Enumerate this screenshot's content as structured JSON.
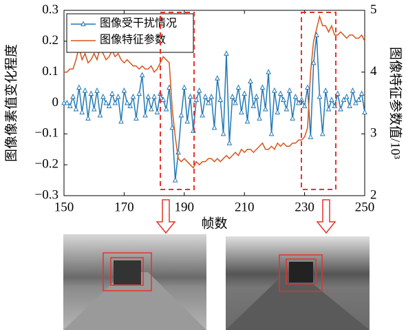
{
  "chart_data": {
    "type": "line",
    "x_label": "帧数",
    "y_label": "图像像素值变化程度",
    "y2_label": "图像特征参数值/10³",
    "x": [
      150,
      151,
      152,
      153,
      154,
      155,
      156,
      157,
      158,
      159,
      160,
      161,
      162,
      163,
      164,
      165,
      166,
      167,
      168,
      169,
      170,
      171,
      172,
      173,
      174,
      175,
      176,
      177,
      178,
      179,
      180,
      181,
      182,
      183,
      184,
      185,
      186,
      187,
      188,
      189,
      190,
      191,
      192,
      193,
      194,
      195,
      196,
      197,
      198,
      199,
      200,
      201,
      202,
      203,
      204,
      205,
      206,
      207,
      208,
      209,
      210,
      211,
      212,
      213,
      214,
      215,
      216,
      217,
      218,
      219,
      220,
      221,
      222,
      223,
      224,
      225,
      226,
      227,
      228,
      229,
      230,
      231,
      232,
      233,
      234,
      235,
      236,
      237,
      238,
      239,
      240,
      241,
      242,
      243,
      244,
      245,
      246,
      247,
      248,
      249,
      250
    ],
    "series": [
      {
        "name": "图像受干扰情况",
        "color": "#1f77b4",
        "axis": "y",
        "values": [
          0,
          0,
          -0.01,
          0.02,
          -0.02,
          0.05,
          -0.03,
          0.04,
          -0.05,
          0.03,
          -0.02,
          0.04,
          -0.04,
          0.02,
          0,
          -0.01,
          0.03,
          0,
          0.02,
          -0.06,
          0.04,
          0,
          -0.01,
          0.02,
          -0.05,
          0.03,
          0.09,
          -0.04,
          0.02,
          -0.02,
          0.02,
          -0.03,
          0.03,
          0.01,
          -0.02,
          0.05,
          -0.08,
          -0.25,
          -0.16,
          -0.04,
          0.05,
          -0.06,
          0.02,
          -0.09,
          0.01,
          0.04,
          -0.04,
          0.02,
          0,
          0.02,
          -0.08,
          0.08,
          0.01,
          -0.1,
          0.16,
          -0.13,
          0.02,
          0,
          0.05,
          -0.03,
          0.03,
          -0.06,
          0.07,
          -0.01,
          0.02,
          -0.05,
          0.05,
          -0.02,
          0.1,
          -0.1,
          0.04,
          -0.03,
          0.03,
          0.01,
          -0.02,
          0.04,
          -0.05,
          0.02,
          0,
          0.01,
          -0.01,
          0.05,
          -0.11,
          0.13,
          0.22,
          0.02,
          -0.1,
          0.04,
          -0.02,
          0.01,
          -0.01,
          0.03,
          -0.02,
          0.01,
          0.02,
          -0.01,
          0.04,
          0,
          0.01,
          0.03,
          -0.03
        ]
      },
      {
        "name": "图像特征参数",
        "color": "#d95319",
        "axis": "y2",
        "values": [
          4.0,
          4.0,
          4.05,
          4.05,
          4.2,
          4.4,
          4.2,
          4.3,
          4.15,
          4.2,
          4.3,
          4.2,
          4.4,
          4.3,
          4.2,
          4.25,
          4.35,
          4.25,
          4.3,
          4.2,
          4.15,
          4.2,
          4.15,
          4.1,
          4.1,
          4.05,
          4.1,
          4.05,
          4.05,
          4.1,
          4.0,
          4.05,
          4.15,
          4.25,
          4.2,
          4.15,
          3.4,
          2.95,
          2.6,
          2.55,
          2.6,
          2.55,
          2.5,
          2.45,
          2.55,
          2.5,
          2.55,
          2.55,
          2.6,
          2.6,
          2.55,
          2.6,
          2.55,
          2.6,
          2.65,
          2.6,
          2.65,
          2.7,
          2.65,
          2.75,
          2.7,
          2.75,
          2.75,
          2.7,
          2.75,
          2.8,
          2.85,
          2.75,
          2.75,
          2.8,
          2.75,
          2.85,
          2.8,
          2.85,
          2.8,
          2.8,
          2.85,
          2.85,
          2.9,
          2.9,
          2.95,
          3.1,
          4.0,
          4.5,
          4.7,
          4.9,
          4.75,
          4.75,
          4.65,
          4.75,
          4.6,
          4.6,
          4.65,
          4.6,
          4.55,
          4.6,
          4.6,
          4.55,
          4.55,
          4.6,
          4.5
        ]
      }
    ],
    "xlim": [
      150,
      250
    ],
    "xticks": [
      150,
      170,
      190,
      210,
      230,
      250
    ],
    "ylim": [
      -0.3,
      0.3
    ],
    "yticks": [
      {
        "value": -0.3,
        "label": "−0.3"
      },
      {
        "value": -0.2,
        "label": "−0.2"
      },
      {
        "value": -0.1,
        "label": "−0.1"
      },
      0,
      0.1,
      0.2,
      0.3
    ],
    "y2lim": [
      2,
      5
    ],
    "y2ticks": [
      2,
      3,
      4,
      5
    ],
    "legend": "upper left"
  }
}
